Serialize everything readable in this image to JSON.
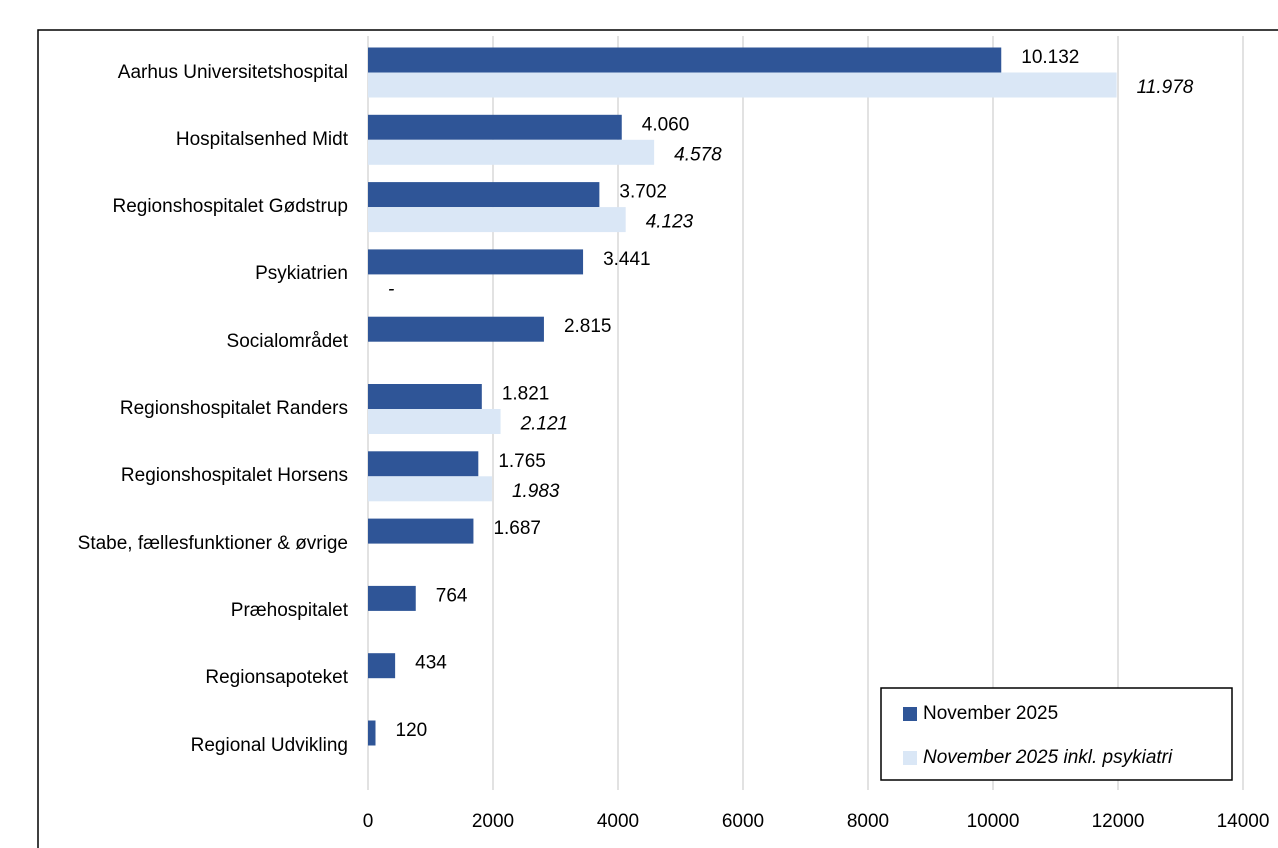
{
  "chart_data": {
    "type": "bar",
    "orientation": "horizontal",
    "categories": [
      "Aarhus Universitetshospital",
      "Hospitalsenhed Midt",
      "Regionshospitalet Gødstrup",
      "Psykiatrien",
      "Socialområdet",
      "Regionshospitalet Randers",
      "Regionshospitalet Horsens",
      "Stabe, fællesfunktioner & øvrige",
      "Præhospitalet",
      "Regionsapoteket",
      "Regional Udvikling"
    ],
    "series": [
      {
        "name": "November 2025",
        "color": "#2f5597",
        "values": [
          10132,
          4060,
          3702,
          3441,
          2815,
          1821,
          1765,
          1687,
          764,
          434,
          120
        ],
        "value_labels": [
          "10.132",
          "4.060",
          "3.702",
          "3.441",
          "2.815",
          "1.821",
          "1.765",
          "1.687",
          "764",
          "434",
          "120"
        ]
      },
      {
        "name": "November 2025 inkl. psykiatri",
        "color": "#dae7f6",
        "values": [
          11978,
          4578,
          4123,
          null,
          null,
          2121,
          1983,
          null,
          null,
          null,
          null
        ],
        "value_labels": [
          "11.978",
          "4.578",
          "4.123",
          "-",
          null,
          "2.121",
          "1.983",
          null,
          null,
          null,
          null
        ]
      }
    ],
    "xlim": [
      0,
      14000
    ],
    "xticks": [
      0,
      2000,
      4000,
      6000,
      8000,
      10000,
      12000,
      14000
    ],
    "grid": true,
    "legend": "lower right"
  }
}
